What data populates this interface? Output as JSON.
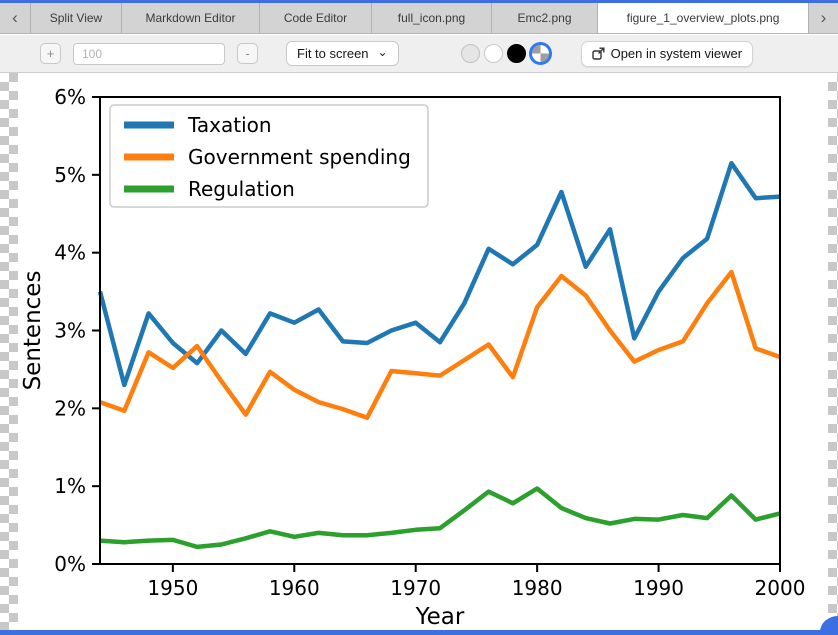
{
  "window": {
    "accent_color": "#3e6fe2"
  },
  "tab_bar": {
    "scroll_left_glyph": "‹",
    "scroll_right_glyph": "›",
    "tabs": [
      {
        "label": "Split View",
        "active": false
      },
      {
        "label": "Markdown Editor",
        "active": false
      },
      {
        "label": "Code Editor",
        "active": false
      },
      {
        "label": "full_icon.png",
        "active": false
      },
      {
        "label": "Emc2.png",
        "active": false
      },
      {
        "label": "figure_1_overview_plots.png",
        "active": true
      }
    ]
  },
  "toolbar": {
    "zoom_in_glyph": "+",
    "zoom_out_glyph": "-",
    "zoom_value": "100",
    "fit_mode_selected": "Fit to screen",
    "caret_glyph": "⌄",
    "background_options": [
      "default",
      "white",
      "black",
      "transparent"
    ],
    "selected_background": "transparent",
    "open_button_label": "Open in system viewer"
  },
  "chart_data": {
    "type": "line",
    "title": "",
    "xlabel": "Year",
    "ylabel": "Sentences",
    "xlim": [
      1944,
      2000
    ],
    "ylim": [
      0,
      6
    ],
    "grid": false,
    "legend_position": "upper left",
    "x_ticks": {
      "values": [
        1950,
        1960,
        1970,
        1980,
        1990,
        2000
      ],
      "labels": [
        "1950",
        "1960",
        "1970",
        "1980",
        "1990",
        "2000"
      ]
    },
    "y_ticks": {
      "values": [
        0,
        1,
        2,
        3,
        4,
        5,
        6
      ],
      "labels": [
        "0%",
        "1%",
        "2%",
        "3%",
        "4%",
        "5%",
        "6%"
      ]
    },
    "x": [
      1944,
      1946,
      1948,
      1950,
      1952,
      1954,
      1956,
      1958,
      1960,
      1962,
      1964,
      1966,
      1968,
      1970,
      1972,
      1974,
      1976,
      1978,
      1980,
      1982,
      1984,
      1986,
      1988,
      1990,
      1992,
      1994,
      1996,
      1998,
      2000
    ],
    "series": [
      {
        "name": "Taxation",
        "color": "#1f77b4",
        "values": [
          3.5,
          2.3,
          3.22,
          2.84,
          2.58,
          3.0,
          2.7,
          3.22,
          3.1,
          3.27,
          2.86,
          2.84,
          3.0,
          3.1,
          2.85,
          3.35,
          4.05,
          3.85,
          4.1,
          4.78,
          3.82,
          4.3,
          2.9,
          3.5,
          3.93,
          4.18,
          5.15,
          4.7,
          4.72
        ]
      },
      {
        "name": "Government spending",
        "color": "#ff7f0e",
        "values": [
          2.08,
          1.97,
          2.72,
          2.52,
          2.8,
          2.35,
          1.92,
          2.47,
          2.24,
          2.08,
          1.99,
          1.88,
          2.48,
          2.45,
          2.42,
          2.62,
          2.82,
          2.4,
          3.3,
          3.7,
          3.45,
          3.0,
          2.6,
          2.75,
          2.86,
          3.35,
          3.75,
          2.77,
          2.66
        ]
      },
      {
        "name": "Regulation",
        "color": "#2ca02c",
        "values": [
          0.3,
          0.28,
          0.3,
          0.31,
          0.22,
          0.25,
          0.33,
          0.42,
          0.35,
          0.4,
          0.37,
          0.37,
          0.4,
          0.44,
          0.46,
          0.69,
          0.93,
          0.78,
          0.97,
          0.72,
          0.59,
          0.52,
          0.58,
          0.57,
          0.63,
          0.59,
          0.88,
          0.57,
          0.65
        ]
      }
    ]
  }
}
